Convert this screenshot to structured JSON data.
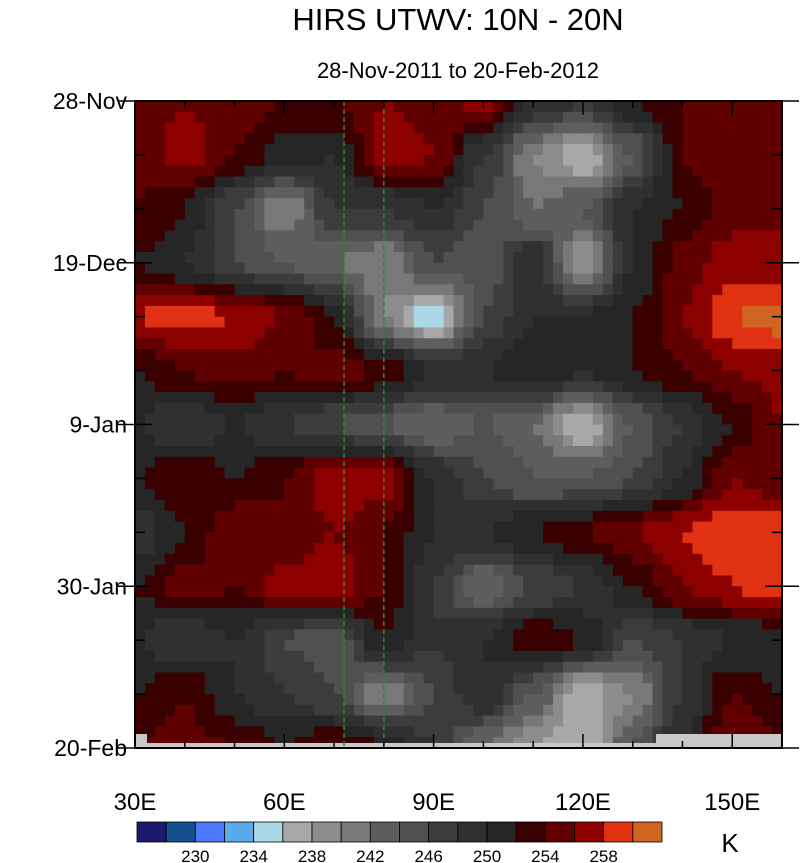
{
  "chart_data": {
    "type": "heatmap",
    "title": "HIRS UTWV: 10N - 20N",
    "subtitle": "28-Nov-2011 to 20-Feb-2012",
    "xlabel": "",
    "ylabel": "",
    "units_label": "K",
    "xlim": [
      30,
      160
    ],
    "ylim_days": [
      0,
      84
    ],
    "x_ticks": [
      {
        "v": 30,
        "label": "30E"
      },
      {
        "v": 60,
        "label": "60E"
      },
      {
        "v": 90,
        "label": "90E"
      },
      {
        "v": 120,
        "label": "120E"
      },
      {
        "v": 150,
        "label": "150E"
      }
    ],
    "y_ticks": [
      {
        "v": 0,
        "label": "28-Nov"
      },
      {
        "v": 21,
        "label": "19-Dec"
      },
      {
        "v": 42,
        "label": "9-Jan"
      },
      {
        "v": 63,
        "label": "30-Jan"
      },
      {
        "v": 84,
        "label": "20-Feb"
      }
    ],
    "reference_lines_lon": [
      72,
      80
    ],
    "grid_lon": [
      30,
      40,
      50,
      60,
      70,
      80,
      90,
      100,
      110,
      120,
      130,
      140,
      150,
      160
    ],
    "grid_day": [
      0,
      7,
      14,
      21,
      28,
      35,
      42,
      49,
      56,
      63,
      70,
      77,
      84
    ],
    "values": [
      [
        254,
        256,
        255,
        254,
        254,
        256,
        255,
        257,
        250,
        248,
        252,
        254,
        256,
        254
      ],
      [
        255,
        257,
        254,
        251,
        250,
        257,
        256,
        248,
        240,
        236,
        244,
        254,
        256,
        255
      ],
      [
        254,
        252,
        246,
        240,
        248,
        248,
        250,
        246,
        242,
        244,
        250,
        252,
        255,
        256
      ],
      [
        252,
        250,
        246,
        244,
        242,
        240,
        246,
        244,
        250,
        238,
        250,
        255,
        257,
        256
      ],
      [
        258,
        259,
        258,
        256,
        252,
        240,
        234,
        246,
        250,
        250,
        252,
        256,
        260,
        261
      ],
      [
        252,
        254,
        255,
        254,
        255,
        254,
        250,
        250,
        252,
        250,
        252,
        254,
        256,
        257
      ],
      [
        250,
        248,
        250,
        248,
        246,
        244,
        242,
        244,
        242,
        236,
        244,
        248,
        252,
        256
      ],
      [
        252,
        254,
        252,
        254,
        258,
        257,
        250,
        246,
        244,
        244,
        246,
        250,
        256,
        254
      ],
      [
        248,
        252,
        256,
        254,
        256,
        254,
        250,
        250,
        252,
        254,
        256,
        258,
        260,
        260
      ],
      [
        252,
        255,
        254,
        257,
        258,
        254,
        248,
        242,
        246,
        248,
        252,
        256,
        258,
        260
      ],
      [
        250,
        248,
        250,
        246,
        244,
        252,
        248,
        250,
        254,
        252,
        246,
        248,
        250,
        250
      ],
      [
        252,
        254,
        250,
        248,
        246,
        240,
        246,
        250,
        244,
        236,
        240,
        248,
        254,
        252
      ],
      [
        254,
        255,
        254,
        252,
        254,
        252,
        248,
        242,
        238,
        236,
        244,
        250,
        256,
        254
      ]
    ],
    "levels": [
      228,
      230,
      232,
      234,
      236,
      238,
      240,
      242,
      244,
      246,
      248,
      250,
      252,
      254,
      256,
      258,
      260
    ],
    "colors": [
      "#1b1a6e",
      "#134f8c",
      "#4a78ff",
      "#5aaaee",
      "#aad8e6",
      "#a8a8a8",
      "#8c8c8c",
      "#787878",
      "#5e5e5e",
      "#505050",
      "#3c3c3c",
      "#303030",
      "#262626",
      "#3a0000",
      "#600000",
      "#8c0000",
      "#e03212",
      "#d06420"
    ],
    "colorbar_labels": [
      {
        "v": 230,
        "label": "230"
      },
      {
        "v": 234,
        "label": "234"
      },
      {
        "v": 238,
        "label": "238"
      },
      {
        "v": 242,
        "label": "242"
      },
      {
        "v": 246,
        "label": "246"
      },
      {
        "v": 250,
        "label": "250"
      },
      {
        "v": 254,
        "label": "254"
      },
      {
        "v": 258,
        "label": "258"
      }
    ],
    "missing_color": "#c8c8c8",
    "reference_line_color": "#2a8a2a"
  }
}
